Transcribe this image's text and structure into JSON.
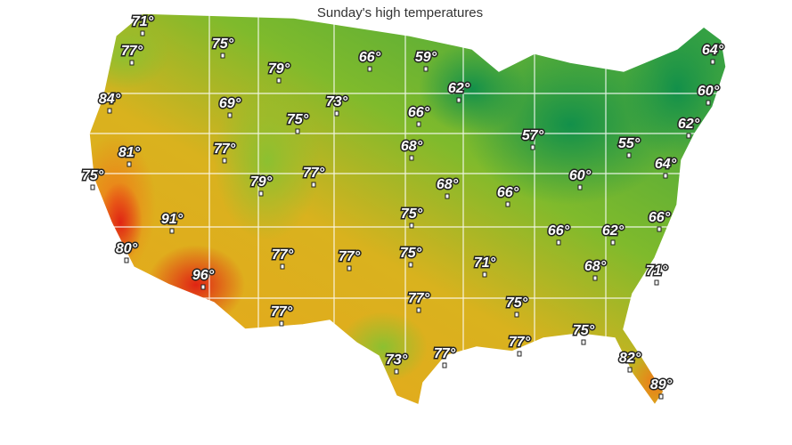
{
  "title": "Sunday's high temperatures",
  "labels": [
    "71°",
    "77°",
    "75°",
    "79°",
    "66°",
    "59°",
    "64°",
    "84°",
    "69°",
    "73°",
    "62°",
    "60°",
    "75°",
    "66°",
    "62°",
    "81°",
    "77°",
    "68°",
    "57°",
    "55°",
    "64°",
    "75°",
    "79°",
    "77°",
    "68°",
    "66°",
    "60°",
    "91°",
    "75°",
    "66°",
    "66°",
    "62°",
    "80°",
    "77°",
    "77°",
    "75°",
    "71°",
    "68°",
    "71°",
    "96°",
    "77°",
    "75°",
    "77°",
    "75°",
    "77°",
    "73°",
    "77°",
    "82°",
    "89°"
  ]
}
